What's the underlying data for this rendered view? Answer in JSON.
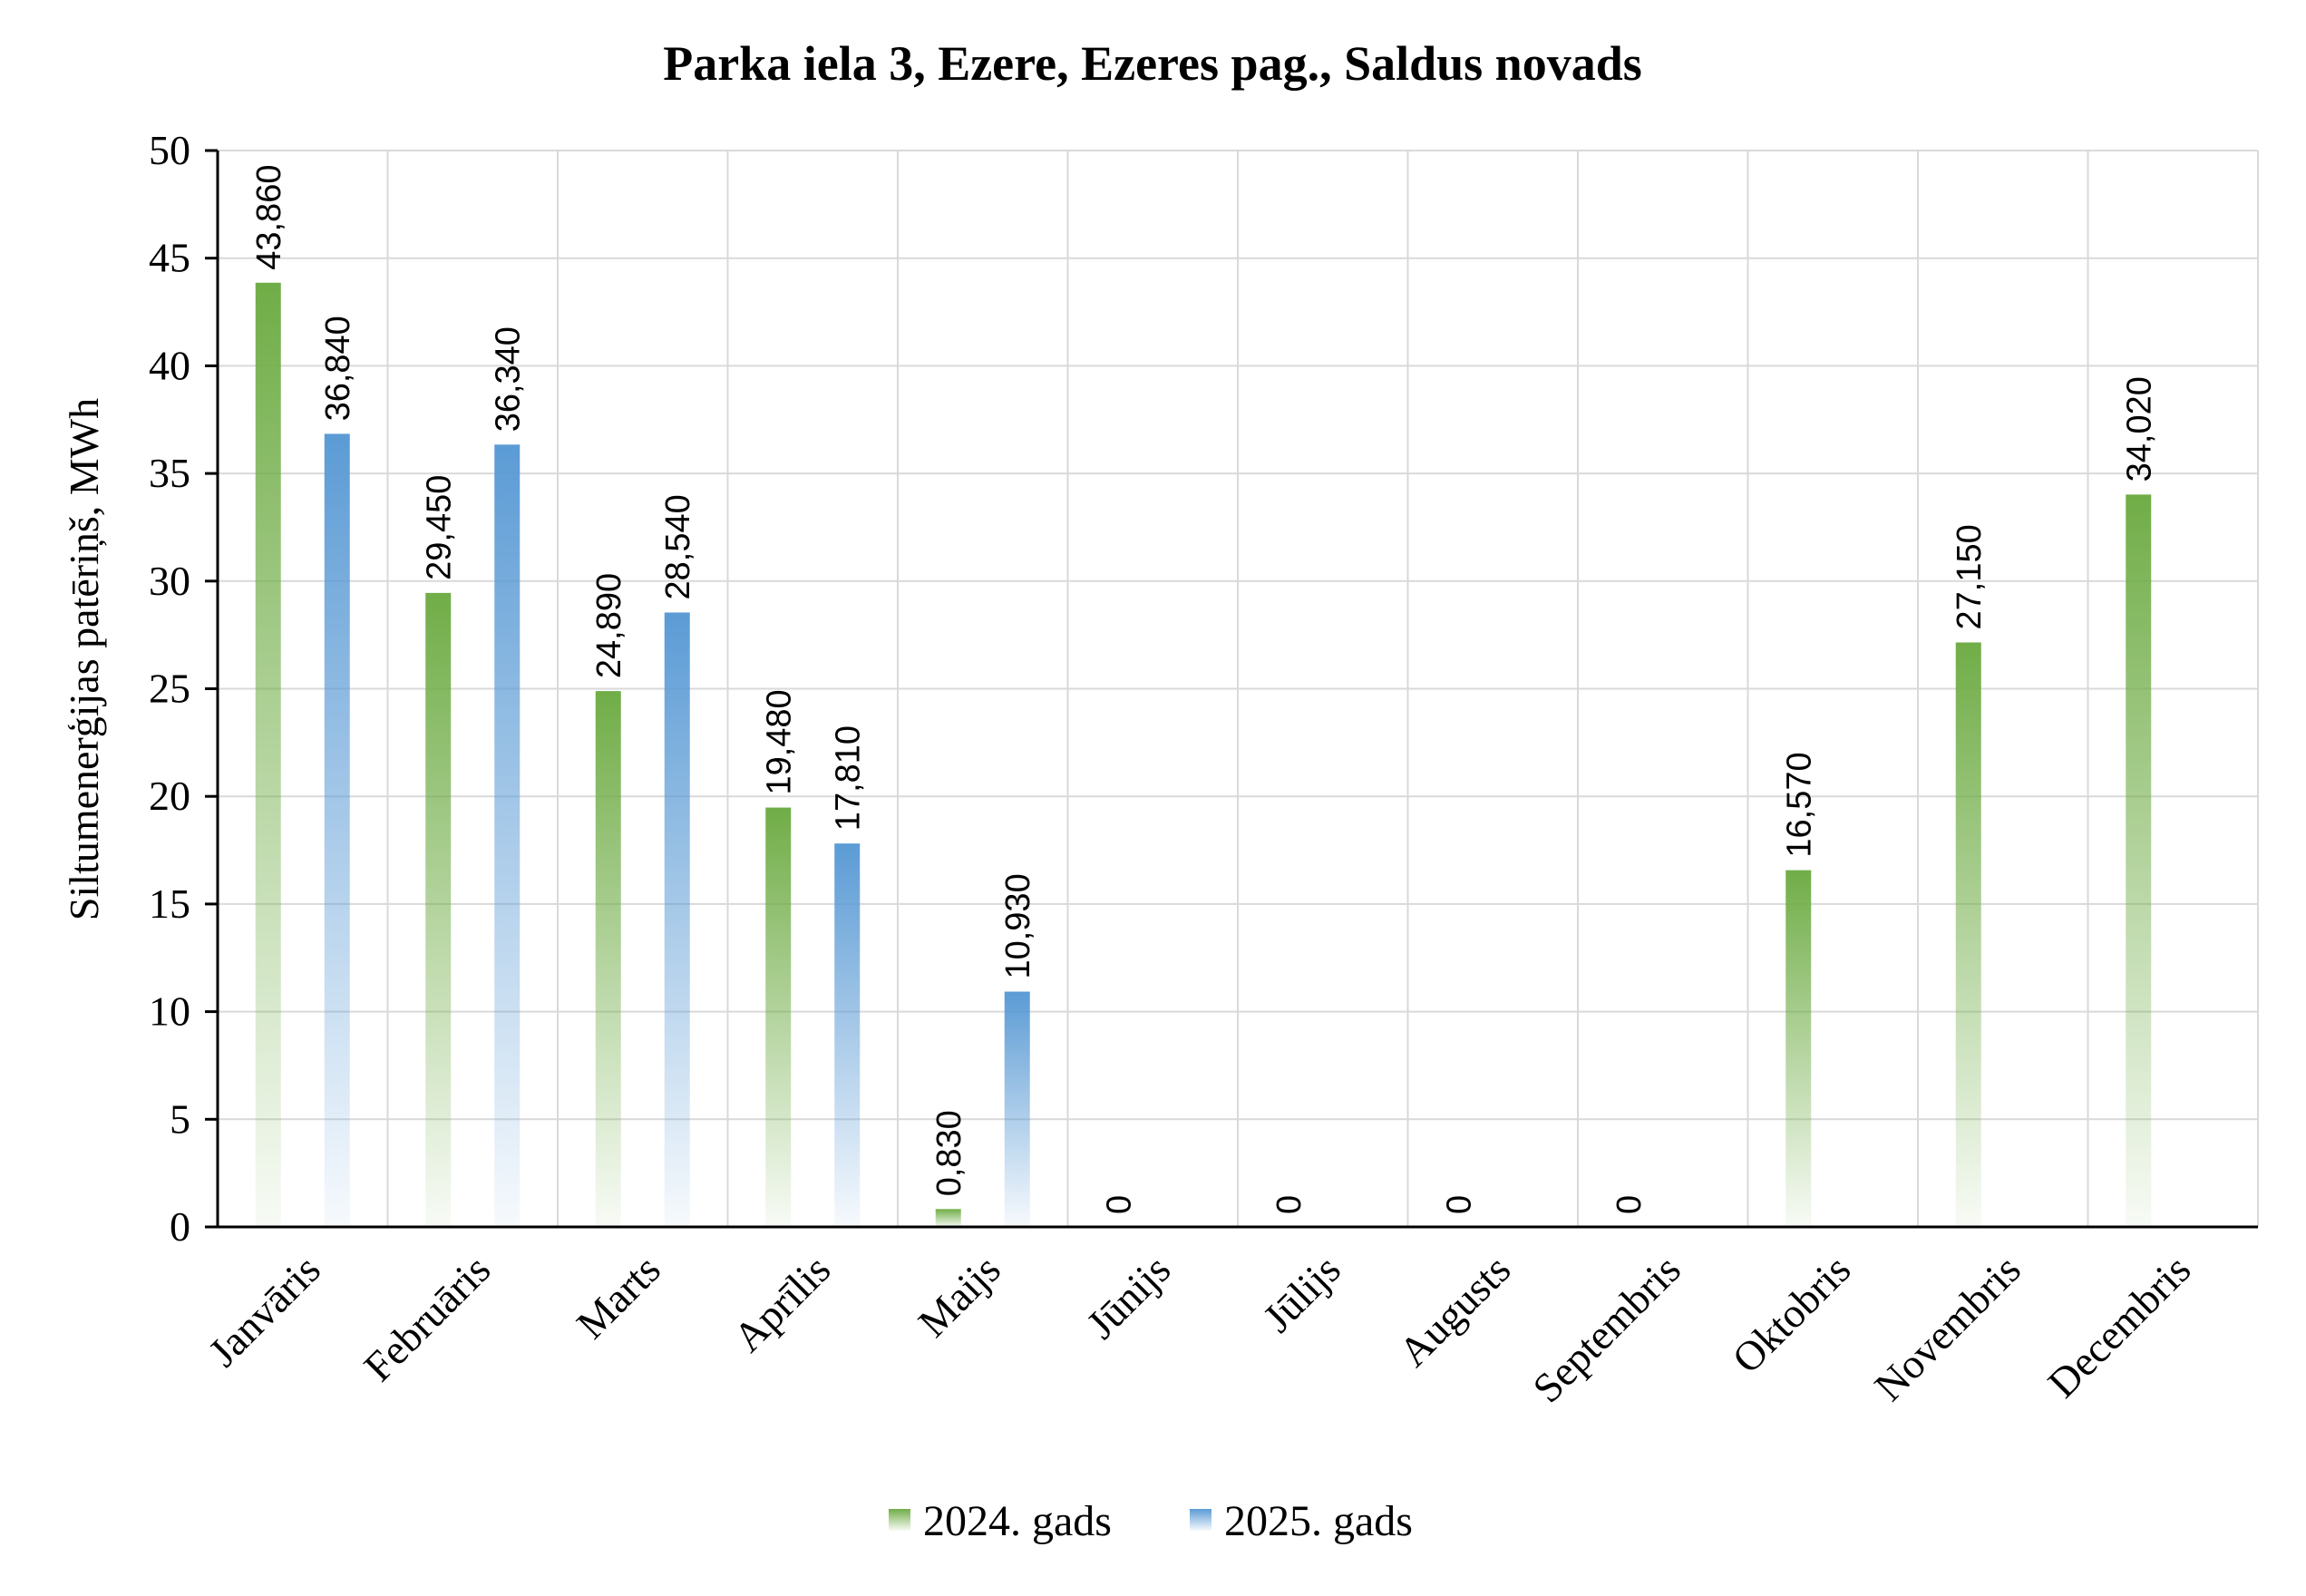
{
  "chart_data": {
    "type": "bar",
    "title": "Parka iela 3, Ezere, Ezeres pag., Saldus novads",
    "xlabel": "",
    "ylabel": "Siltumenerģijas patēriņš, MWh",
    "ylim": [
      0,
      50
    ],
    "yticks": [
      0,
      5,
      10,
      15,
      20,
      25,
      30,
      35,
      40,
      45,
      50
    ],
    "grid": true,
    "legend_position": "bottom",
    "categories": [
      "Janvāris",
      "Februāris",
      "Marts",
      "Aprīlis",
      "Maijs",
      "Jūnijs",
      "Jūlijs",
      "Augusts",
      "Septembris",
      "Oktobris",
      "Novembris",
      "Decembris"
    ],
    "series": [
      {
        "name": "2024. gads",
        "color": "#70ad47",
        "values": [
          43.86,
          29.45,
          24.89,
          19.48,
          0.83,
          0,
          0,
          0,
          0,
          16.57,
          27.15,
          34.02
        ],
        "labels": [
          "43,860",
          "29,450",
          "24,890",
          "19,480",
          "0,830",
          "0",
          "0",
          "0",
          "0",
          "16,570",
          "27,150",
          "34,020"
        ]
      },
      {
        "name": "2025. gads",
        "color": "#5b9bd5",
        "values": [
          36.84,
          36.34,
          28.54,
          17.81,
          10.93,
          null,
          null,
          null,
          null,
          null,
          null,
          null
        ],
        "labels": [
          "36,840",
          "36,340",
          "28,540",
          "17,810",
          "10,930",
          null,
          null,
          null,
          null,
          null,
          null,
          null
        ]
      }
    ]
  }
}
